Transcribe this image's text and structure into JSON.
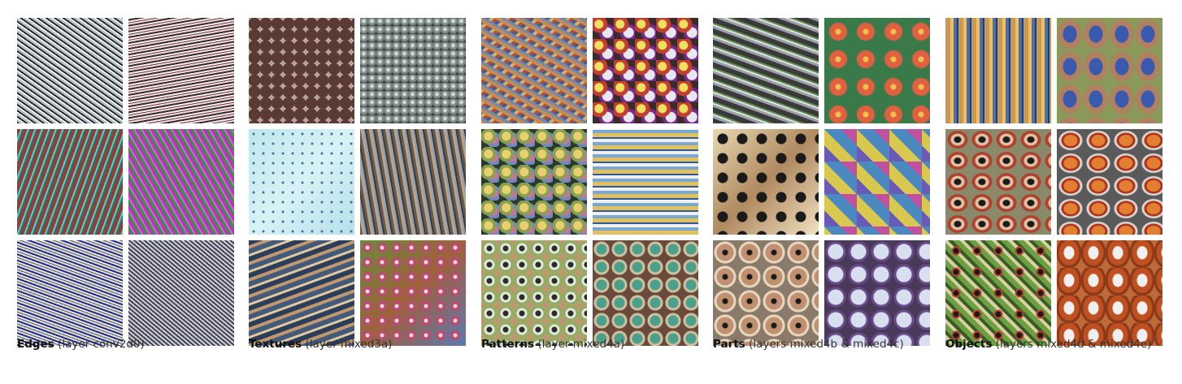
{
  "groups": [
    {
      "name": "Edges",
      "layer": "(layer conv2d0)"
    },
    {
      "name": "Textures",
      "layer": "(layer mixed3a)"
    },
    {
      "name": "Patterns",
      "layer": "(layer mixed4a)"
    },
    {
      "name": "Parts",
      "layer": "(layers mixed4b & mixed4c)"
    },
    {
      "name": "Objects",
      "layer": "(layers mixed4d & mixed4e)"
    }
  ]
}
